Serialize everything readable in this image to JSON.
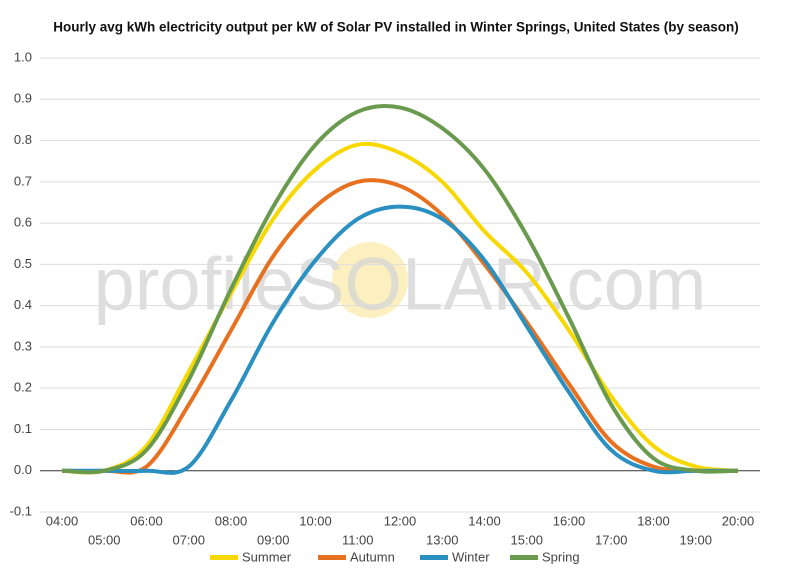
{
  "chart_data": {
    "type": "line",
    "title": "Hourly avg kWh electricity output per kW of Solar PV installed in Winter Springs, United States (by season)",
    "watermark": "profileSOLAR.com",
    "categories": [
      "04:00",
      "05:00",
      "06:00",
      "07:00",
      "08:00",
      "09:00",
      "10:00",
      "11:00",
      "12:00",
      "13:00",
      "14:00",
      "15:00",
      "16:00",
      "17:00",
      "18:00",
      "19:00",
      "20:00"
    ],
    "series": [
      {
        "name": "Summer",
        "color": "#f7d800",
        "values": [
          0,
          0,
          0.06,
          0.24,
          0.43,
          0.61,
          0.73,
          0.79,
          0.77,
          0.7,
          0.58,
          0.48,
          0.34,
          0.18,
          0.06,
          0.01,
          0
        ]
      },
      {
        "name": "Autumn",
        "color": "#e8711f",
        "values": [
          0,
          0,
          0.01,
          0.16,
          0.34,
          0.52,
          0.64,
          0.7,
          0.69,
          0.62,
          0.5,
          0.36,
          0.21,
          0.07,
          0.01,
          0,
          0
        ]
      },
      {
        "name": "Winter",
        "color": "#2a8fc1",
        "values": [
          0,
          0,
          0,
          0.01,
          0.17,
          0.36,
          0.51,
          0.61,
          0.64,
          0.61,
          0.51,
          0.35,
          0.19,
          0.05,
          0,
          0,
          0
        ]
      },
      {
        "name": "Spring",
        "color": "#6a9a4e",
        "values": [
          0,
          0,
          0.05,
          0.22,
          0.44,
          0.64,
          0.79,
          0.87,
          0.88,
          0.83,
          0.73,
          0.57,
          0.37,
          0.16,
          0.03,
          0,
          0
        ]
      }
    ],
    "ylim": [
      -0.1,
      1.0
    ],
    "yticks": [
      -0.1,
      {
        "value": 0,
        "label": "0.0"
      },
      0.1,
      0.2,
      0.3,
      0.4,
      0.5,
      0.6,
      0.7,
      0.8,
      0.9,
      {
        "value": 1,
        "label": "1.0"
      }
    ],
    "grid": true
  }
}
